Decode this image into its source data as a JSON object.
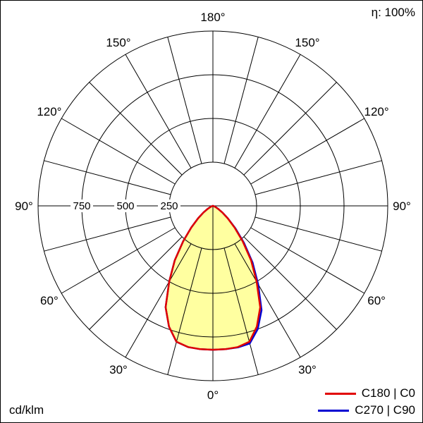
{
  "chart_data": {
    "type": "polar",
    "unit": "cd/klm",
    "efficiency": "η: 100%",
    "angle_labels": [
      "0°",
      "30°",
      "60°",
      "90°",
      "120°",
      "150°",
      "180°"
    ],
    "angle_grid_step_deg": 15,
    "radial_ticks": [
      "250",
      "500",
      "750"
    ],
    "radial_ring_value": 250,
    "radial_max_value": 1000,
    "gamma_step_deg": 5,
    "fill_color": "#ffffa0",
    "grid_color": "#000000",
    "series": [
      {
        "name": "C180 | C0",
        "color": "#e10000",
        "left": [
          823,
          823,
          820,
          805,
          735,
          640,
          500,
          380,
          265,
          175,
          110,
          65,
          35,
          18,
          8,
          3,
          1,
          0,
          0
        ],
        "right": [
          823,
          823,
          820,
          805,
          735,
          640,
          500,
          380,
          265,
          175,
          110,
          65,
          35,
          18,
          8,
          3,
          1,
          0,
          0
        ]
      },
      {
        "name": "C270 | C90",
        "color": "#0000d2",
        "left": [
          823,
          823,
          820,
          805,
          735,
          640,
          500,
          380,
          265,
          175,
          110,
          65,
          35,
          18,
          8,
          3,
          1,
          0,
          0
        ],
        "right": [
          823,
          823,
          822,
          815,
          750,
          658,
          518,
          395,
          276,
          182,
          112,
          66,
          35,
          18,
          8,
          3,
          1,
          0,
          0
        ]
      }
    ]
  }
}
